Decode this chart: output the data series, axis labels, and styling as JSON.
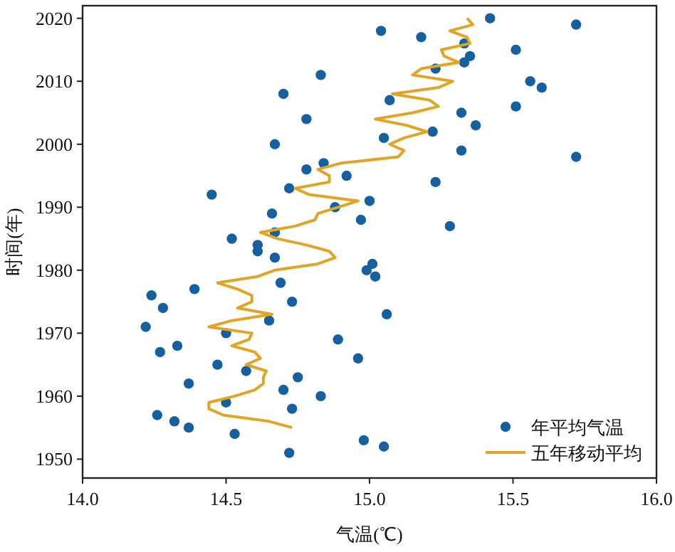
{
  "chart_data": {
    "type": "scatter",
    "xlabel": "气温(℃)",
    "ylabel": "时间(年)",
    "xlim": [
      14.0,
      16.0
    ],
    "xticks": [
      {
        "value": 14,
        "label": "14.0"
      },
      {
        "value": 14.5,
        "label": "14.5"
      },
      {
        "value": 15,
        "label": "15.0"
      },
      {
        "value": 15.5,
        "label": "15.5"
      },
      {
        "value": 16,
        "label": "16.0"
      }
    ],
    "ylim": [
      1947,
      2022
    ],
    "yticks": [
      1950,
      1960,
      1970,
      1980,
      1990,
      2000,
      2010,
      2020
    ],
    "grid": false,
    "legend": "bottom right",
    "series": [
      {
        "name": "年平均气温",
        "type": "scatter",
        "marker": "circle",
        "color": "#15609e",
        "x": [
          14.72,
          15.05,
          14.98,
          14.53,
          14.37,
          14.32,
          14.26,
          14.73,
          14.5,
          14.83,
          14.7,
          14.37,
          14.75,
          14.57,
          14.47,
          14.96,
          14.27,
          14.33,
          14.89,
          14.5,
          14.22,
          14.65,
          15.06,
          14.28,
          14.73,
          14.24,
          14.39,
          14.69,
          15.02,
          14.99,
          15.01,
          14.67,
          14.61,
          14.61,
          14.52,
          14.67,
          15.28,
          14.97,
          14.66,
          14.88,
          15.0,
          14.45,
          14.72,
          15.23,
          14.92,
          14.78,
          14.84,
          15.72,
          15.32,
          14.67,
          15.05,
          15.22,
          15.37,
          14.78,
          15.32,
          15.51,
          15.07,
          14.7,
          15.6,
          15.56,
          14.83,
          15.23,
          15.33,
          15.35,
          15.51,
          15.33,
          15.18,
          15.04,
          15.72,
          15.42
        ],
        "values": [
          1951,
          1952,
          1953,
          1954,
          1955,
          1956,
          1957,
          1958,
          1959,
          1960,
          1961,
          1962,
          1963,
          1964,
          1965,
          1966,
          1967,
          1968,
          1969,
          1970,
          1971,
          1972,
          1973,
          1974,
          1975,
          1976,
          1977,
          1978,
          1979,
          1980,
          1981,
          1982,
          1983,
          1984,
          1985,
          1986,
          1987,
          1988,
          1989,
          1990,
          1991,
          1992,
          1993,
          1994,
          1995,
          1996,
          1997,
          1998,
          1999,
          2000,
          2001,
          2002,
          2003,
          2004,
          2005,
          2006,
          2007,
          2008,
          2009,
          2010,
          2011,
          2012,
          2013,
          2014,
          2015,
          2016,
          2017,
          2018,
          2019,
          2020
        ]
      },
      {
        "name": "五年移动平均",
        "type": "line",
        "marker": "none",
        "line_style": "solid",
        "color": "#e0a526",
        "x": [
          14.73,
          14.65,
          14.49,
          14.44,
          14.44,
          14.53,
          14.6,
          14.63,
          14.63,
          14.64,
          14.57,
          14.62,
          14.6,
          14.52,
          14.58,
          14.59,
          14.44,
          14.52,
          14.66,
          14.54,
          14.59,
          14.59,
          14.54,
          14.47,
          14.61,
          14.67,
          14.82,
          14.88,
          14.86,
          14.78,
          14.68,
          14.62,
          14.74,
          14.81,
          14.82,
          14.89,
          14.96,
          14.79,
          14.74,
          14.86,
          14.86,
          14.82,
          14.9,
          15.1,
          15.12,
          15.07,
          15.12,
          15.2,
          15.13,
          15.02,
          15.15,
          15.24,
          15.21,
          15.08,
          15.24,
          15.29,
          15.15,
          15.18,
          15.31,
          15.26,
          15.25,
          15.35,
          15.34,
          15.28,
          15.36,
          15.34
        ],
        "values": [
          1955,
          1956,
          1957,
          1958,
          1959,
          1960,
          1961,
          1962,
          1963,
          1964,
          1965,
          1966,
          1967,
          1968,
          1969,
          1970,
          1971,
          1972,
          1973,
          1974,
          1975,
          1976,
          1977,
          1978,
          1979,
          1980,
          1981,
          1982,
          1983,
          1984,
          1985,
          1986,
          1987,
          1988,
          1989,
          1990,
          1991,
          1992,
          1993,
          1994,
          1995,
          1996,
          1997,
          1998,
          1999,
          2000,
          2001,
          2002,
          2003,
          2004,
          2005,
          2006,
          2007,
          2008,
          2009,
          2010,
          2011,
          2012,
          2013,
          2014,
          2015,
          2016,
          2017,
          2018,
          2019,
          2020
        ]
      }
    ]
  }
}
